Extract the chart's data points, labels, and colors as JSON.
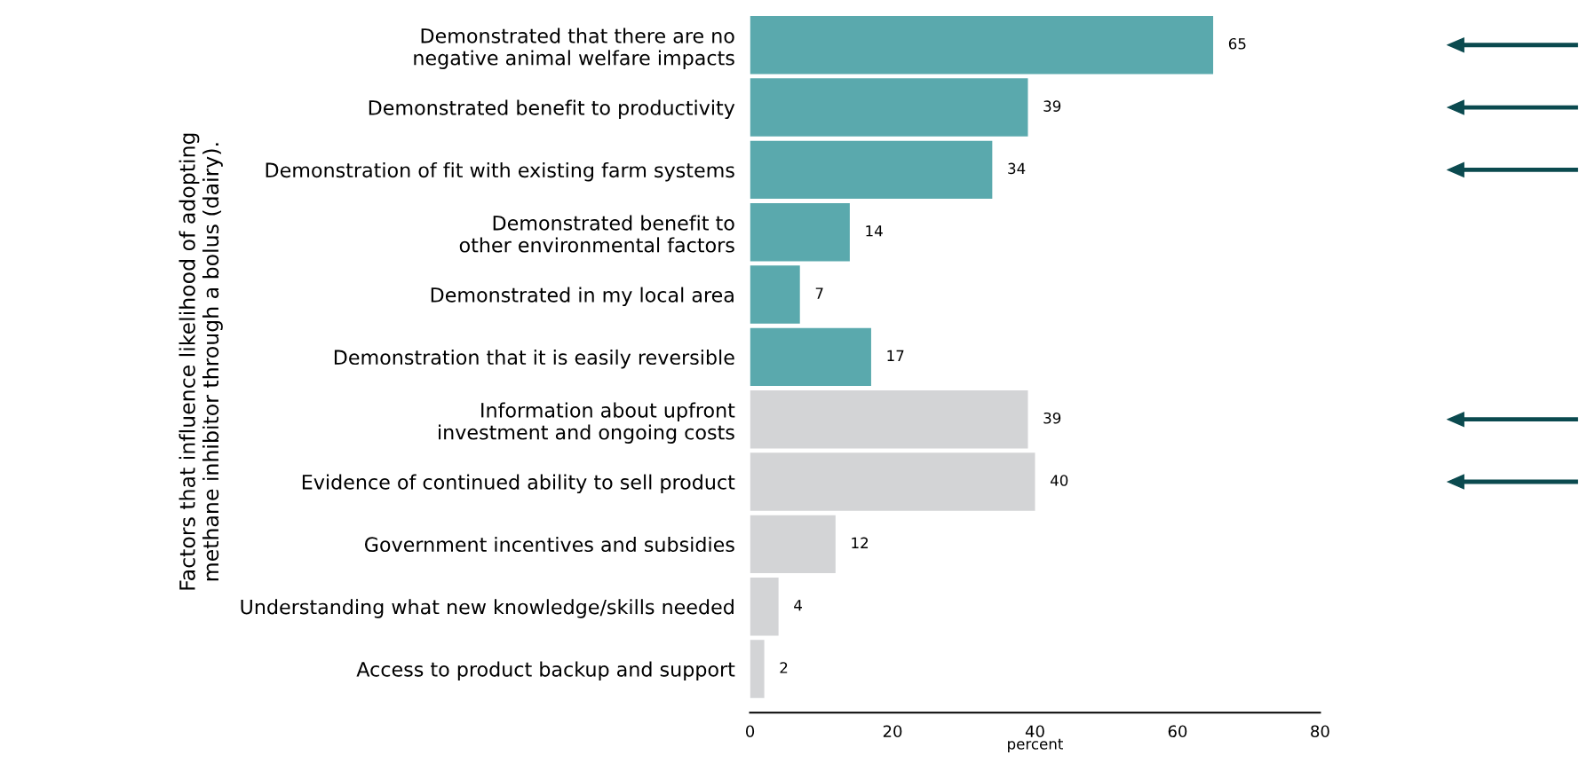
{
  "chart_data": {
    "type": "bar",
    "orientation": "horizontal",
    "ylabel": "Factors that influence likelihood of adopting\nmethane inhibitor through a bolus (dairy).",
    "xlabel": "percent",
    "categories": [
      "Demonstrated that there are no\nnegative animal welfare impacts",
      "Demonstrated benefit to productivity",
      "Demonstration of fit with existing farm systems",
      "Demonstrated benefit to\nother environmental factors",
      "Demonstrated in my local area",
      "Demonstration that it is easily reversible",
      "Information about upfront\ninvestment and ongoing costs",
      "Evidence of continued ability to sell product",
      "Government incentives and subsidies",
      "Understanding what new knowledge/skills needed",
      "Access to product backup and support"
    ],
    "values": [
      65,
      39,
      34,
      14,
      7,
      17,
      39,
      40,
      12,
      4,
      2
    ],
    "colors": [
      "#5aa9ad",
      "#5aa9ad",
      "#5aa9ad",
      "#5aa9ad",
      "#5aa9ad",
      "#5aa9ad",
      "#d3d4d6",
      "#d3d4d6",
      "#d3d4d6",
      "#d3d4d6",
      "#d3d4d6"
    ],
    "data_labels": true,
    "xlim": [
      0,
      80
    ],
    "xticks": [
      0,
      20,
      40,
      60,
      80
    ],
    "grid": false
  }
}
